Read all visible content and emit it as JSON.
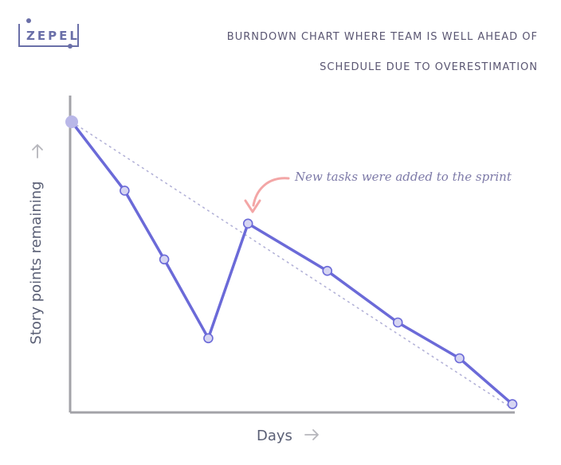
{
  "logo": {
    "text": "ZEPEL",
    "color": "#6a6fa8"
  },
  "chart_data": {
    "type": "line",
    "title_lines": [
      "BURNDOWN CHART WHERE TEAM IS WELL AHEAD OF",
      "SCHEDULE DUE TO OVERESTIMATION"
    ],
    "xlabel": "Days",
    "ylabel": "Story points remaining",
    "x_ticks_shown": false,
    "y_ticks_shown": false,
    "grid": false,
    "xlim": [
      0,
      10
    ],
    "ylim": [
      0,
      100
    ],
    "x": [
      0,
      1.2,
      2.1,
      3.1,
      4.0,
      5.8,
      7.4,
      8.8,
      10.0
    ],
    "series": [
      {
        "values": [
          100,
          76,
          52,
          24.5,
          64.5,
          48,
          30,
          17.5,
          1.5
        ],
        "color": "#6b6ad8"
      }
    ],
    "ideal_line": {
      "from": [
        0,
        100
      ],
      "to": [
        10,
        0
      ],
      "style": "dotted",
      "color": "#b0afd6"
    },
    "annotation": {
      "text": "New tasks were added to the sprint",
      "points_to_index": 4,
      "arrow_color": "#f3a6a6"
    },
    "colors": {
      "line": "#6b6ad8",
      "marker_fill": "#d6d5f2",
      "start_marker": "#b9b7e8",
      "axis": "#a3a3a8"
    }
  }
}
